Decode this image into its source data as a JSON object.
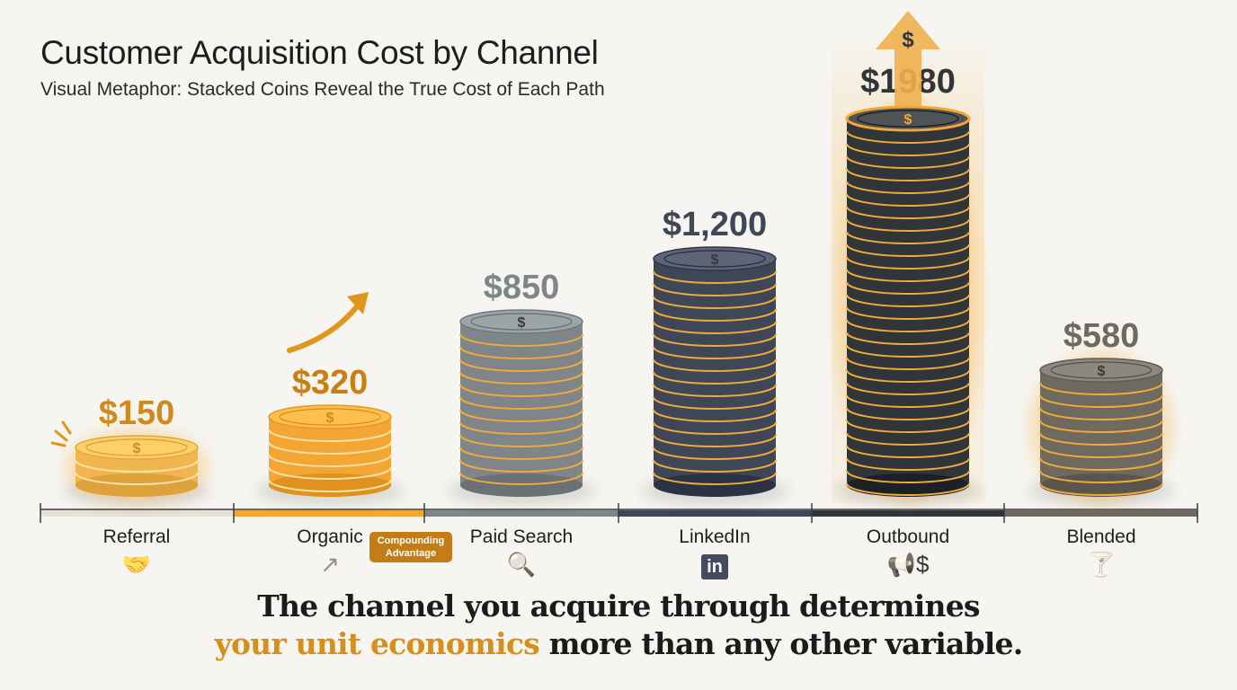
{
  "title": "Customer Acquisition Cost by Channel",
  "subtitle": "Visual Metaphor: Stacked Coins Reveal the True Cost of Each Path",
  "chart_data": {
    "type": "bar",
    "title": "Customer Acquisition Cost by Channel",
    "categories": [
      "Referral",
      "Organic",
      "Paid Search",
      "LinkedIn",
      "Outbound",
      "Blended"
    ],
    "values": [
      150,
      320,
      850,
      1200,
      1980,
      580
    ],
    "data_labels": [
      "$150",
      "$320",
      "$850",
      "$1,200",
      "$1980",
      "$580"
    ],
    "colors": [
      "#f2b64f",
      "#f3a633",
      "#7e868a",
      "#3f4658",
      "#2f3538",
      "#6e6a60"
    ],
    "label_colors": [
      "#d08a1a",
      "#c97f14",
      "#7e868a",
      "#3f4658",
      "#2f3538",
      "#6e6a60"
    ],
    "icons": [
      "handshake-icon",
      "growth-arrow-icon",
      "dollar-search-icon",
      "linkedin-icon",
      "megaphone-dollar-icon",
      "cocktail-icon"
    ],
    "annotation": "Compounding Advantage",
    "highlight": "Outbound",
    "grid": false
  },
  "annotation_lines": [
    "Compounding",
    "Advantage"
  ],
  "takeaway": {
    "line1": "The channel you acquire through determines",
    "highlight": "your unit economics",
    "line2_rest": " more than any other variable."
  },
  "outbound_arrow_symbol": "$",
  "coin_symbol": "$"
}
